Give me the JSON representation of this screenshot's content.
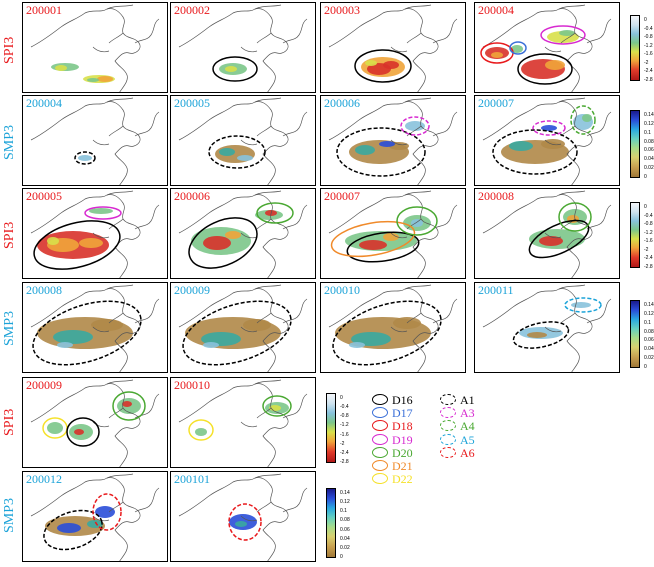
{
  "rows": [
    {
      "label": "SPI3",
      "label_color": "#e8191c",
      "panels": [
        "200001",
        "200002",
        "200003",
        "200004"
      ]
    },
    {
      "label": "SMP3",
      "label_color": "#1ca3d8",
      "panels": [
        "200004",
        "200005",
        "200006",
        "200007"
      ]
    },
    {
      "label": "SPI3",
      "label_color": "#e8191c",
      "panels": [
        "200005",
        "200006",
        "200007",
        "200008"
      ]
    },
    {
      "label": "SMP3",
      "label_color": "#1ca3d8",
      "panels": [
        "200008",
        "200009",
        "200010",
        "200011"
      ]
    },
    {
      "label": "SPI3",
      "label_color": "#e8191c",
      "panels": [
        "200009",
        "200010"
      ]
    },
    {
      "label": "SMP3",
      "label_color": "#1ca3d8",
      "panels": [
        "200012",
        "200101"
      ]
    }
  ],
  "spi_colorbar": {
    "ticks": [
      "0",
      "-0.4",
      "-0.8",
      "-1.2",
      "-1.6",
      "-2",
      "-2.4",
      "-2.8"
    ]
  },
  "smp_colorbar": {
    "ticks": [
      "0.14",
      "0.12",
      "0.1",
      "0.08",
      "0.06",
      "0.04",
      "0.02",
      "0"
    ]
  },
  "legend": {
    "drought_events": [
      {
        "label": "D16",
        "color": "#000000"
      },
      {
        "label": "D17",
        "color": "#3a6fd8"
      },
      {
        "label": "D18",
        "color": "#e8191c"
      },
      {
        "label": "D19",
        "color": "#d72ad0"
      },
      {
        "label": "D20",
        "color": "#4aa832"
      },
      {
        "label": "D21",
        "color": "#f08a2a"
      },
      {
        "label": "D22",
        "color": "#f5e12a"
      }
    ],
    "areas": [
      {
        "label": "A1",
        "color": "#000000"
      },
      {
        "label": "A3",
        "color": "#d72ad0"
      },
      {
        "label": "A4",
        "color": "#4aa832"
      },
      {
        "label": "A5",
        "color": "#1ca3d8"
      },
      {
        "label": "A6",
        "color": "#e8191c"
      }
    ]
  }
}
